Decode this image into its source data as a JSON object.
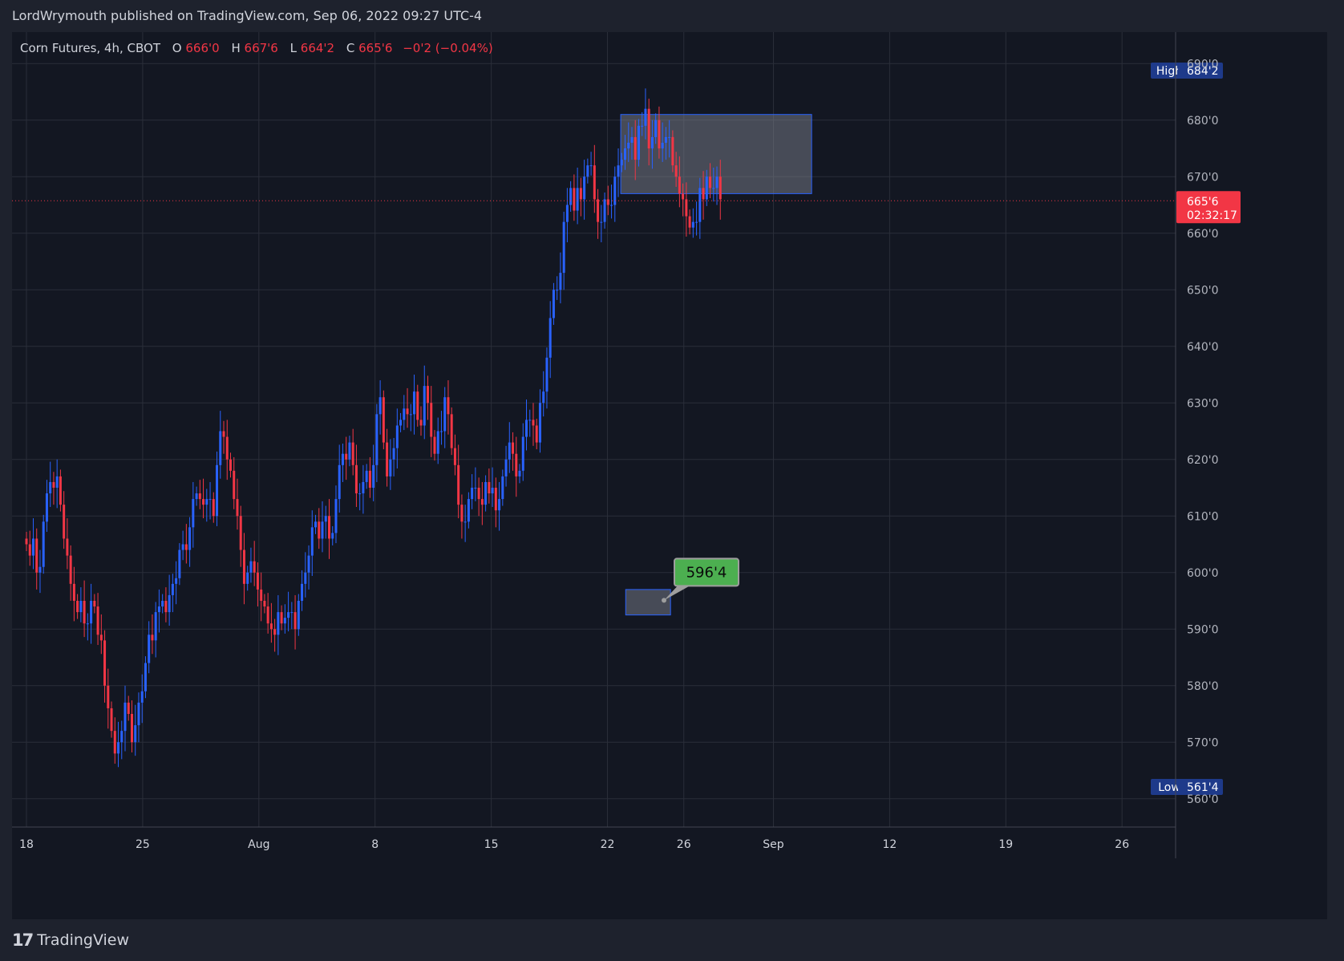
{
  "header": {
    "attribution": "LordWrymouth published on TradingView.com, Sep 06, 2022 09:27 UTC-4"
  },
  "footer": {
    "brand": "TradingView",
    "logo_icon": "tradingview-logo-icon"
  },
  "colors": {
    "background": "#131722",
    "frame": "#1e222d",
    "grid": "#2a2e39",
    "up": "#2962ff",
    "down": "#f23645",
    "text": "#d1d4dc",
    "label_green": "#4caf50",
    "zone": "#7b808c"
  },
  "chart_data": {
    "type": "candlestick",
    "title": "Corn Futures, 4h, CBOT",
    "symbol": "Corn Futures",
    "interval": "4h",
    "exchange": "CBOT",
    "ohlc_legend": {
      "O_label": "O",
      "O": "666'0",
      "H_label": "H",
      "H": "667'6",
      "L_label": "L",
      "L": "664'2",
      "C_label": "C",
      "C": "665'6",
      "change": "−0'2 (−0.04%)"
    },
    "grid": true,
    "y_axis": {
      "side": "right",
      "range": [
        555,
        695
      ],
      "ticks": [
        560,
        570,
        580,
        590,
        600,
        610,
        620,
        630,
        640,
        650,
        660,
        670,
        680,
        690
      ],
      "tick_labels": [
        "560'0",
        "570'0",
        "580'0",
        "590'0",
        "600'0",
        "610'0",
        "620'0",
        "630'0",
        "640'0",
        "650'0",
        "660'0",
        "670'0",
        "680'0",
        "690'0"
      ]
    },
    "x_axis": {
      "range_days": [
        "Jul 18",
        "Sep 26"
      ],
      "tick_positions": [
        0,
        7,
        14,
        21,
        28,
        35,
        39.6,
        45,
        52,
        59,
        66
      ],
      "tick_labels": [
        "18",
        "25",
        "Aug",
        "8",
        "15",
        "22",
        "26",
        "Sep",
        "12",
        "19",
        "26"
      ]
    },
    "price_line": {
      "value": 665.75,
      "label": "665'6",
      "countdown": "02:32:17"
    },
    "high_marker": {
      "label": "High",
      "value": "684'2"
    },
    "low_marker": {
      "label": "Low",
      "value": "561'4"
    },
    "annotations": [
      {
        "type": "zone",
        "x_start": 35.8,
        "x_end": 47.3,
        "y_low": 667,
        "y_high": 681
      },
      {
        "type": "zone",
        "x_start": 36.1,
        "x_end": 38.8,
        "y_low": 592.5,
        "y_high": 597
      },
      {
        "type": "callout",
        "text": "596'4",
        "value": 596.5
      }
    ],
    "closes": [
      605,
      603,
      606,
      600,
      601,
      609,
      614,
      616,
      615,
      617,
      612,
      606,
      603,
      598,
      595,
      593,
      595,
      591,
      591,
      595,
      594,
      589,
      588,
      580,
      576,
      572,
      568,
      570,
      572,
      577,
      575,
      570,
      573,
      577,
      579,
      584,
      589,
      588,
      593,
      594,
      595,
      593,
      596,
      598,
      599,
      604,
      605,
      604,
      608,
      613,
      614,
      613,
      612,
      613,
      613,
      610,
      619,
      625,
      624,
      620,
      618,
      613,
      610,
      604,
      598,
      600,
      602,
      600,
      597,
      595,
      594,
      591,
      590,
      589,
      593,
      591,
      592,
      593,
      593,
      590,
      595,
      598,
      600,
      603,
      608,
      609,
      606,
      609,
      610,
      606,
      607,
      613,
      619,
      621,
      620,
      623,
      619,
      614,
      614,
      616,
      618,
      615,
      619,
      628,
      631,
      623,
      617,
      620,
      622,
      626,
      627,
      629,
      628,
      628,
      632,
      627,
      626,
      633,
      630,
      624,
      621,
      625,
      625,
      631,
      628,
      622,
      619,
      612,
      609,
      609,
      613,
      615,
      615,
      613,
      612,
      616,
      614,
      615,
      611,
      613,
      617,
      620,
      623,
      621,
      617,
      618,
      624,
      627,
      627,
      626,
      623,
      630,
      632,
      638,
      645,
      650,
      650,
      653,
      662,
      665,
      668,
      664,
      668,
      666,
      670,
      672,
      672,
      666,
      662,
      662,
      666,
      665,
      665,
      670,
      672,
      673,
      675,
      676,
      677,
      673,
      679,
      679,
      682,
      675,
      677,
      680,
      675,
      676,
      677,
      677,
      672,
      670,
      667,
      666,
      663,
      661,
      662,
      662,
      668,
      666,
      670,
      668,
      668,
      670,
      666
    ]
  }
}
